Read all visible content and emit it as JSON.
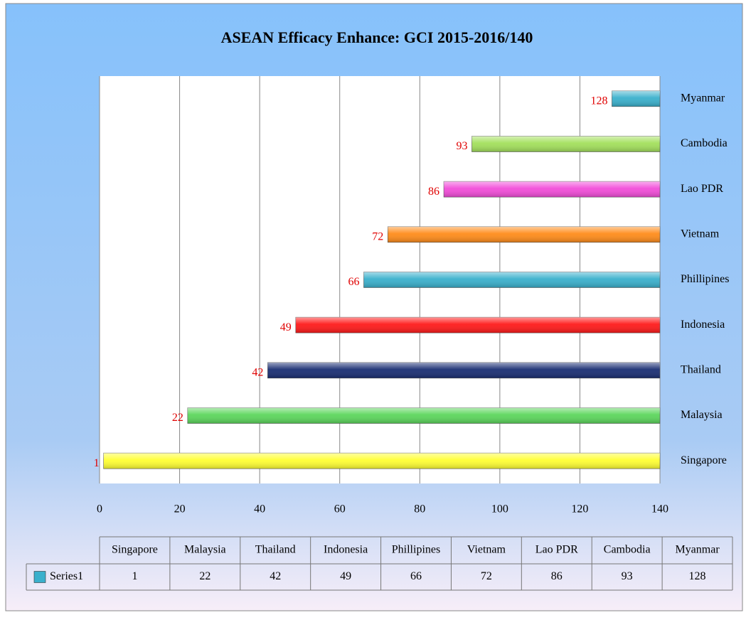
{
  "chart_data": {
    "type": "hbar",
    "title": "ASEAN Efficacy Enhance: GCI 2015-2016/140",
    "categories": [
      "Singapore",
      "Malaysia",
      "Thailand",
      "Indonesia",
      "Phillipines",
      "Vietnam",
      "Lao PDR",
      "Cambodia",
      "Myanmar"
    ],
    "series": [
      {
        "name": "Series1",
        "color": "#3ab0cc",
        "values": [
          1,
          22,
          42,
          49,
          66,
          72,
          86,
          93,
          128
        ]
      }
    ],
    "colors": [
      "#ffff33",
      "#5cd65c",
      "#1a2e73",
      "#ff1a1a",
      "#3ab0cc",
      "#ff8c1a",
      "#f24dd9",
      "#a3e05c",
      "#3ab0cc"
    ],
    "value_label_color": "#e00000",
    "xlim": [
      0,
      140
    ],
    "xticks": [
      0,
      20,
      40,
      60,
      80,
      100,
      120,
      140
    ],
    "grid": true,
    "category_axis_position": "right",
    "data_table": true
  }
}
